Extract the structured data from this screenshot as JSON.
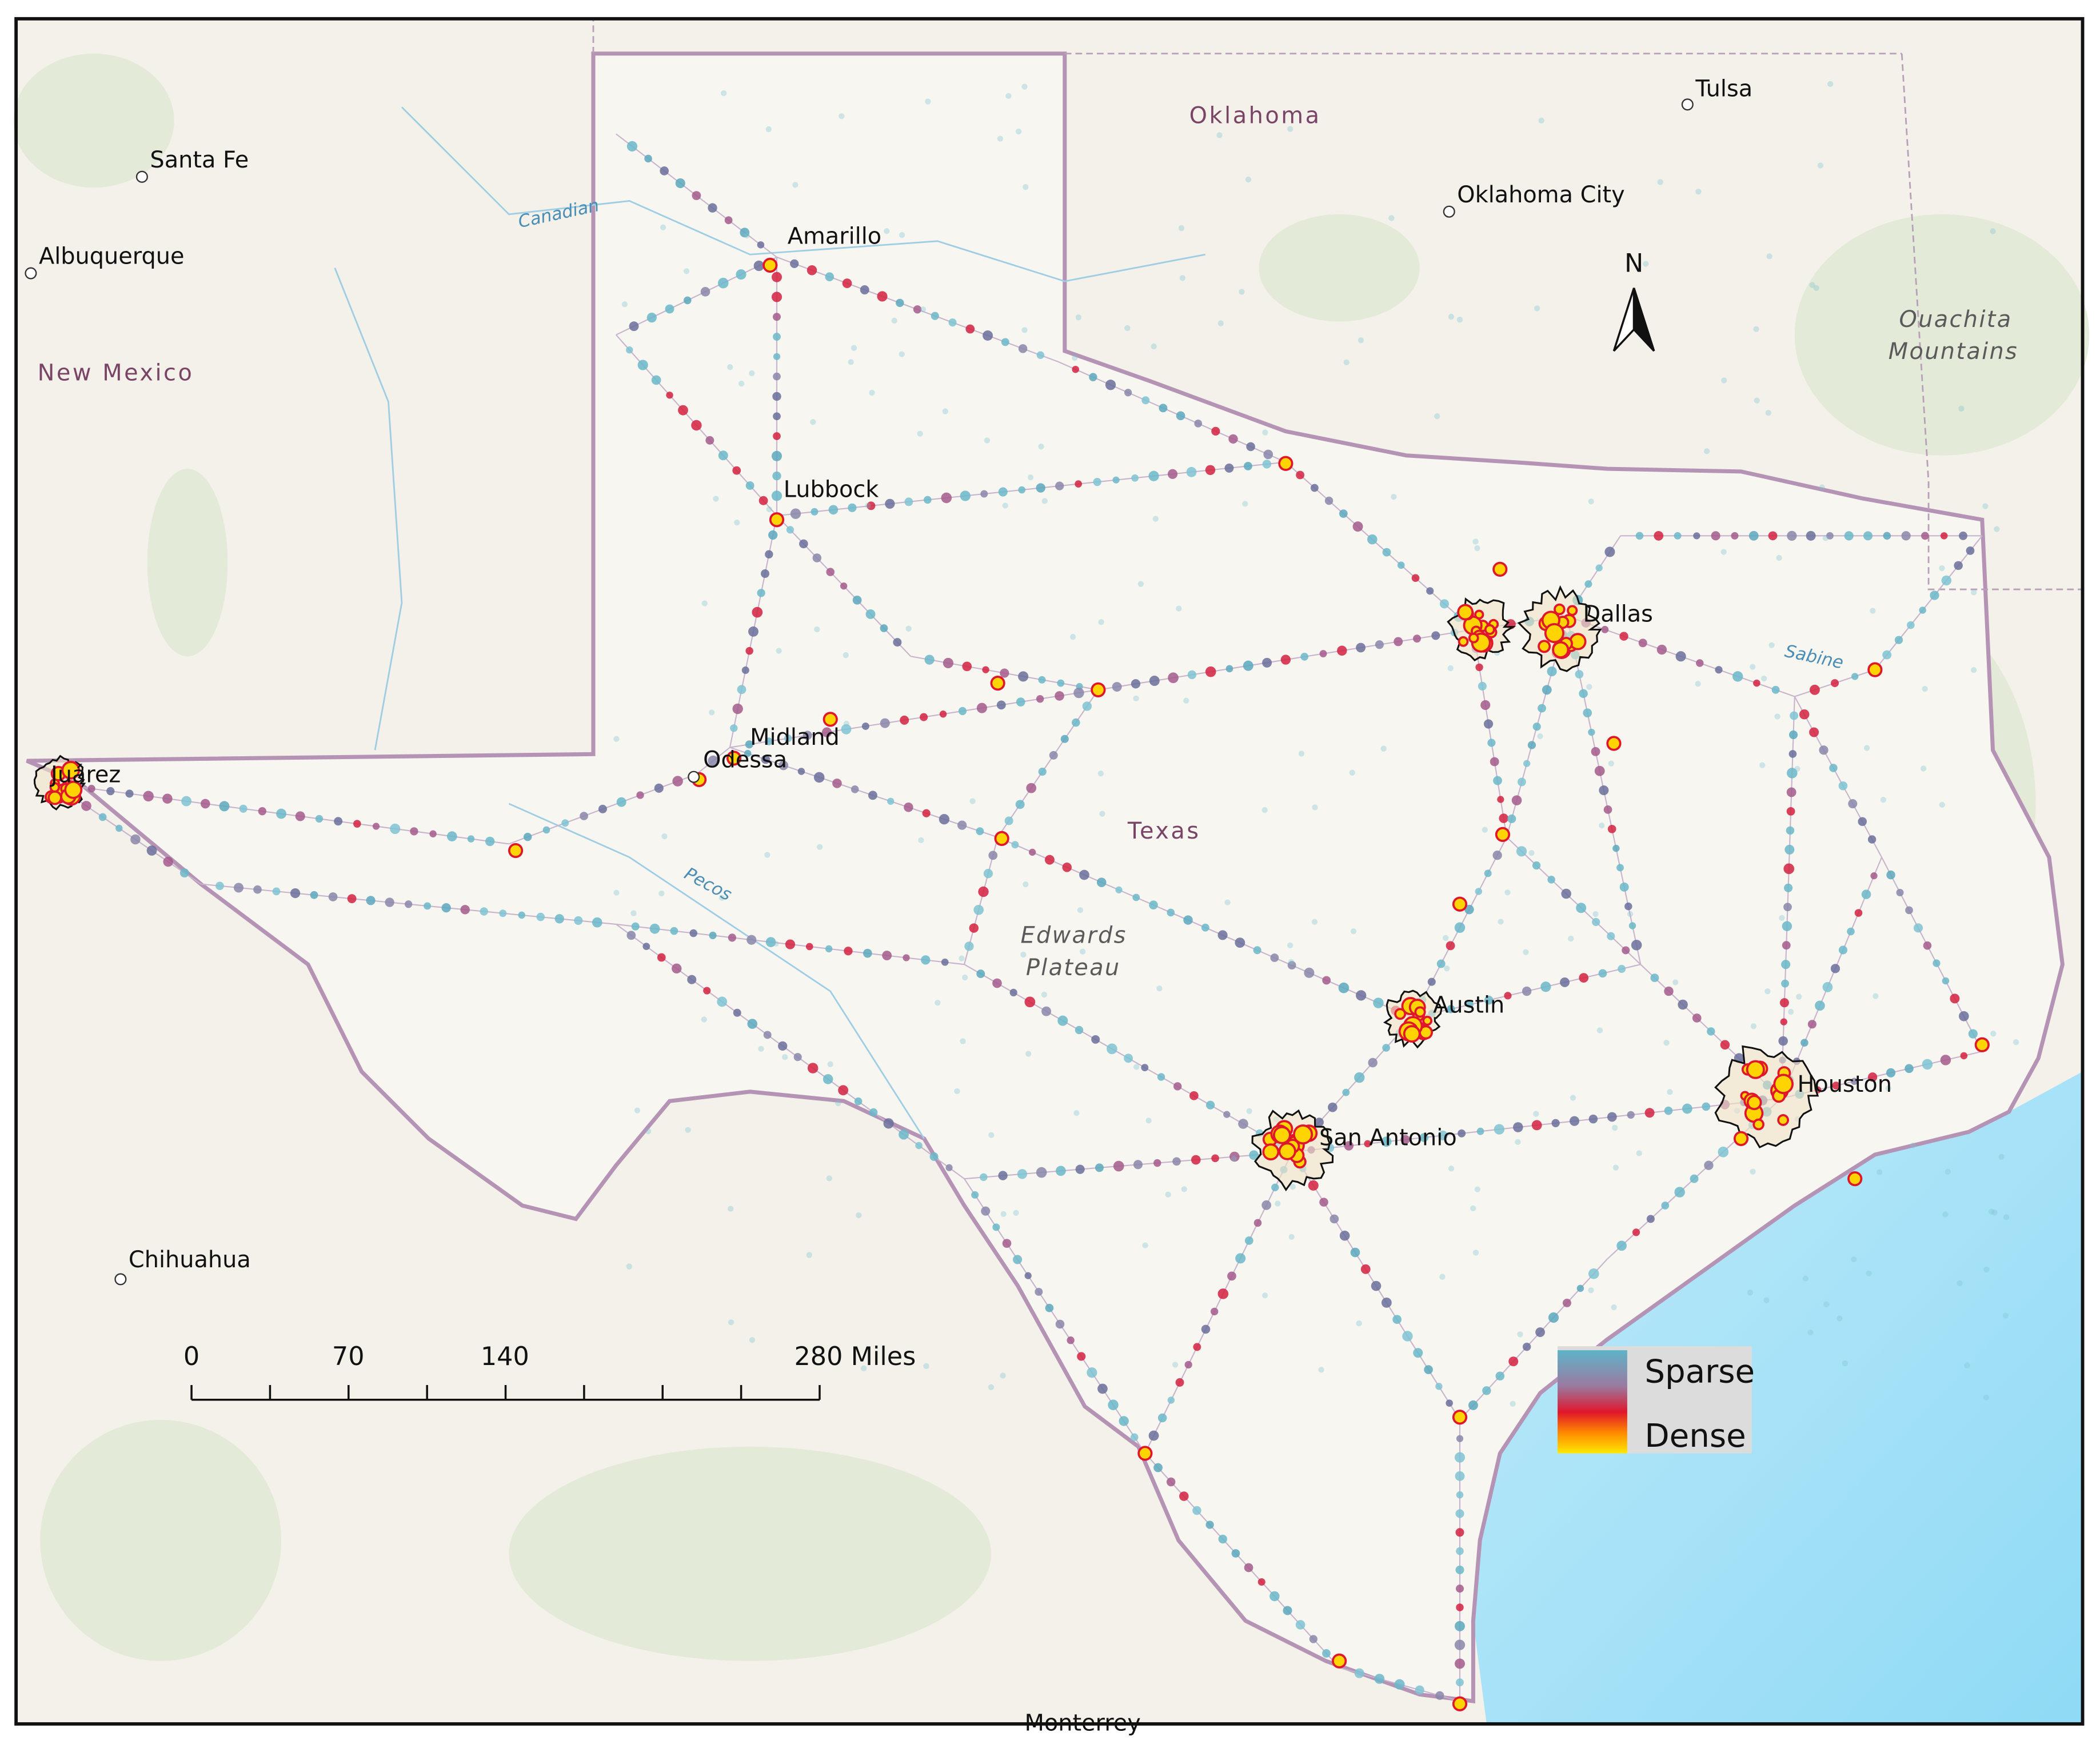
{
  "map": {
    "places": [
      "Tulsa",
      "Oklahoma",
      "Santa Fe",
      "Oklahoma City",
      "Albuquerque",
      "New Mexico",
      "Amarillo",
      "Lubbock",
      "Dallas",
      "Midland",
      "Odessa",
      "Juárez",
      "Texas",
      "Austin",
      "Houston",
      "San Antonio",
      "Chihuahua",
      "Monterrey"
    ],
    "rivers": [
      "Canadian",
      "Sabine",
      "Pecos"
    ],
    "ouachita_mountains": [
      "Ouachita",
      "Mountains"
    ],
    "edwards_plateau": [
      "Edwards",
      "Plateau"
    ],
    "north_arrow": "N",
    "scale_bar": {
      "labels": [
        "0",
        "70",
        "140",
        "280 Miles"
      ]
    },
    "legend": {
      "labels": [
        "Sparse",
        "Dense"
      ]
    }
  }
}
